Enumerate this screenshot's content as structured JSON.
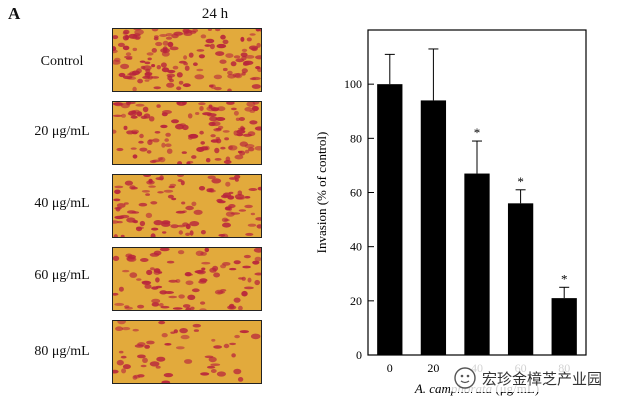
{
  "panel_letter": "A",
  "time_label": "24 h",
  "micrograph_rows": [
    {
      "label": "Control",
      "density": 1.0
    },
    {
      "label": "20 μg/mL",
      "density": 0.9
    },
    {
      "label": "40 μg/mL",
      "density": 0.75
    },
    {
      "label": "60 μg/mL",
      "density": 0.62
    },
    {
      "label": "80 μg/mL",
      "density": 0.38
    }
  ],
  "colors": {
    "micrograph_background": "#e2aa3c",
    "cell_color": "#b8243c",
    "bar_color": "#000000"
  },
  "chart_data": {
    "type": "bar",
    "categories": [
      "0",
      "20",
      "40",
      "60",
      "80"
    ],
    "values": [
      100,
      94,
      67,
      56,
      21
    ],
    "errors": [
      11,
      19,
      12,
      5,
      4
    ],
    "significance": [
      "",
      "",
      "*",
      "*",
      "*"
    ],
    "ylabel": "Invasion (% of control)",
    "xlabel_italic": "A. camphorata",
    "xlabel_unit": " (μg/mL)",
    "ylim": [
      0,
      120
    ],
    "yticks": [
      0,
      20,
      40,
      60,
      80,
      100
    ],
    "grid": false
  },
  "watermark_text": "宏珍金樟芝产业园"
}
